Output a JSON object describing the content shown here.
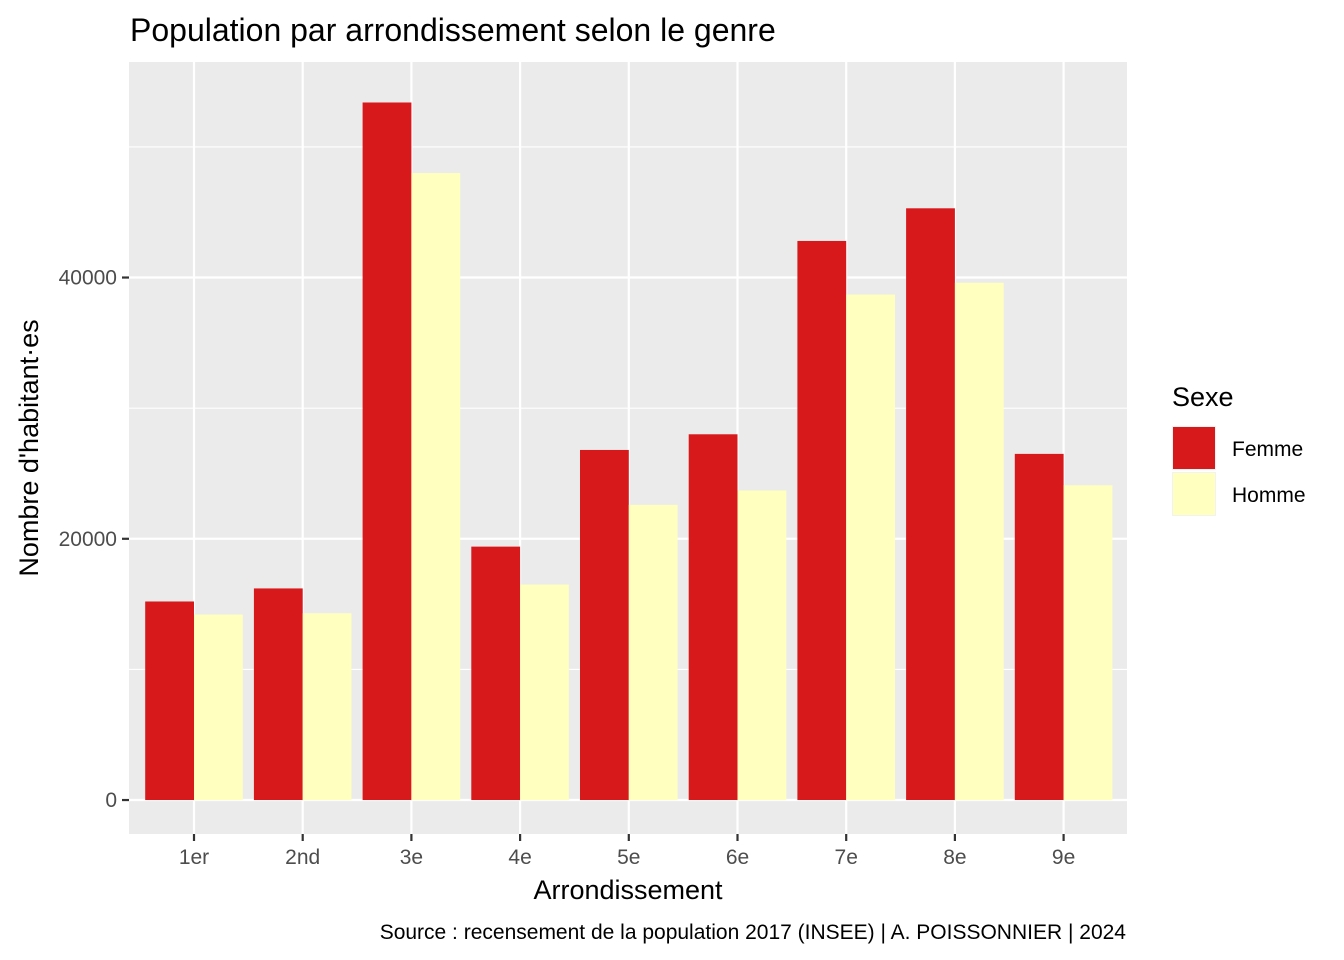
{
  "chart_data": {
    "type": "bar",
    "title": "Population par arrondissement selon le genre",
    "xlabel": "Arrondissement",
    "ylabel": "Nombre d'habitant·es",
    "caption": "Source : recensement de la population 2017 (INSEE) | A. POISSONNIER | 2024",
    "categories": [
      "1er",
      "2nd",
      "3e",
      "4e",
      "5e",
      "6e",
      "7e",
      "8e",
      "9e"
    ],
    "series": [
      {
        "name": "Femme",
        "color": "#d7191c",
        "values": [
          15200,
          16200,
          53400,
          19400,
          26800,
          28000,
          42800,
          45300,
          26500
        ]
      },
      {
        "name": "Homme",
        "color": "#ffffbf",
        "values": [
          14200,
          14300,
          48000,
          16500,
          22600,
          23700,
          38700,
          39600,
          24100
        ]
      }
    ],
    "ylim": [
      -2600,
      56500
    ],
    "yticks": [
      0,
      20000,
      40000
    ],
    "yticks_minor": [
      10000,
      30000,
      50000
    ],
    "grid": true,
    "panel_background": "#ebebeb",
    "legend": {
      "title": "Sexe",
      "position": "right"
    }
  }
}
